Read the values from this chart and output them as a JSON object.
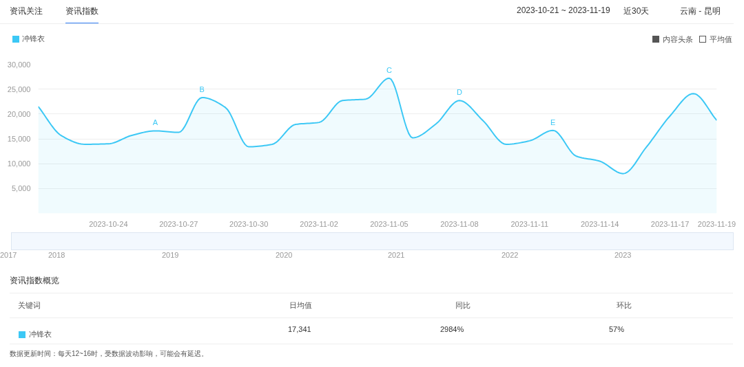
{
  "chart_data": {
    "type": "area",
    "x": [
      "2023-10-21",
      "2023-10-22",
      "2023-10-23",
      "2023-10-24",
      "2023-10-25",
      "2023-10-26",
      "2023-10-27",
      "2023-10-28",
      "2023-10-29",
      "2023-10-30",
      "2023-10-31",
      "2023-11-01",
      "2023-11-02",
      "2023-11-03",
      "2023-11-04",
      "2023-11-05",
      "2023-11-06",
      "2023-11-07",
      "2023-11-08",
      "2023-11-09",
      "2023-11-10",
      "2023-11-11",
      "2023-11-12",
      "2023-11-13",
      "2023-11-14",
      "2023-11-15",
      "2023-11-16",
      "2023-11-17",
      "2023-11-18",
      "2023-11-19"
    ],
    "series": [
      {
        "name": "冲锋衣",
        "color": "#3cc8f5",
        "values": [
          21500,
          15600,
          13900,
          14000,
          15700,
          16600,
          16300,
          23300,
          21300,
          13400,
          13900,
          17900,
          18300,
          22700,
          23000,
          27200,
          15200,
          18000,
          22700,
          18700,
          13900,
          14600,
          16700,
          11500,
          10500,
          8000,
          13400,
          19600,
          24100,
          18700
        ]
      }
    ],
    "xlim": [
      "2023-10-21",
      "2023-11-19"
    ],
    "xticks": [
      "2023-10-24",
      "2023-10-27",
      "2023-10-30",
      "2023-11-02",
      "2023-11-05",
      "2023-11-08",
      "2023-11-11",
      "2023-11-14",
      "2023-11-17",
      "2023-11-19"
    ],
    "ylim": [
      0,
      30000
    ],
    "yticks": [
      {
        "value": 5000,
        "label": "5,000"
      },
      {
        "value": 10000,
        "label": "10,000"
      },
      {
        "value": 15000,
        "label": "15,000"
      },
      {
        "value": 20000,
        "label": "20,000"
      },
      {
        "value": 25000,
        "label": "25,000"
      },
      {
        "value": 30000,
        "label": "30,000"
      }
    ],
    "grid": "y",
    "legend": "top left",
    "marker": "none",
    "line_style": "solid",
    "annotations": [
      "资讯关注",
      "资讯指数",
      "2023-10-21 ~ 2023-11-19",
      "近30天",
      "云南 - 昆明",
      "内容头条",
      "平均值",
      {
        "text": "A",
        "x": "2023-10-26",
        "y": 16600
      },
      {
        "text": "B",
        "x": "2023-10-28",
        "y": 23300
      },
      {
        "text": "C",
        "x": "2023-11-05",
        "y": 27200
      },
      {
        "text": "D",
        "x": "2023-11-08",
        "y": 22700
      },
      {
        "text": "E",
        "x": "2023-11-12",
        "y": 16700
      },
      "2017",
      "2018",
      "2019",
      "2020",
      "2021",
      "2022",
      "2023",
      "资讯指数概览",
      "关键词",
      "日均值",
      "同比",
      "环比",
      "冲锋衣",
      "17,341",
      "2984%",
      "57%",
      "数据更新时间：每天12~16时，受数据波动影响，可能会有延迟。"
    ]
  }
}
